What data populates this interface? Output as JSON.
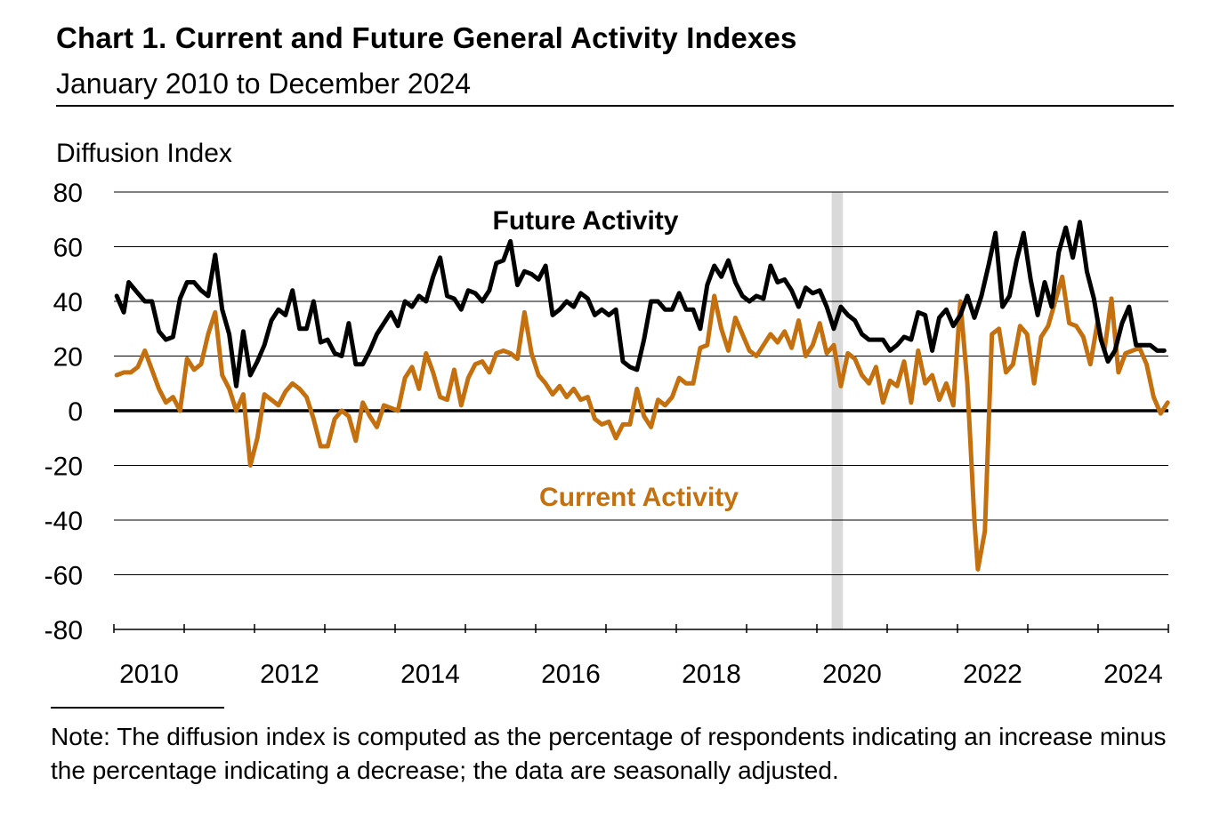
{
  "title": "Chart 1. Current and Future General Activity Indexes",
  "subtitle": "January 2010 to December 2024",
  "note": "Note: The diffusion index is computed as the percentage of respondents indicating an increase minus the percentage indicating a decrease; the data are seasonally adjusted.",
  "colors": {
    "future": "#000000",
    "current": "#c5700f",
    "recession": "#d9d9d9",
    "grid": "#000000"
  },
  "chart_data": {
    "type": "line",
    "title": "Chart 1. Current and Future General Activity Indexes",
    "ylabel": "Diffusion Index",
    "xlabel": "",
    "ylim": [
      -80,
      80
    ],
    "yticks": [
      80,
      60,
      40,
      20,
      0,
      -20,
      -40,
      -60,
      -80
    ],
    "ytick_labels": [
      "80",
      "60",
      "40",
      "20",
      "0",
      "-20",
      "-40",
      "-60",
      "-80"
    ],
    "xticks": [
      2010,
      2012,
      2014,
      2016,
      2018,
      2020,
      2022,
      2024
    ],
    "xtick_labels": [
      "2010",
      "2012",
      "2014",
      "2016",
      "2018",
      "2020",
      "2022",
      "2024"
    ],
    "xlim": [
      2009.96,
      2024.96
    ],
    "shaded_periods": [
      {
        "start": 2020.17,
        "end": 2020.33,
        "label": "recession"
      }
    ],
    "series": [
      {
        "name": "Future Activity",
        "label": "Future Activity",
        "keypoints": [
          [
            2010.0,
            42
          ],
          [
            2010.1,
            36
          ],
          [
            2010.17,
            47
          ],
          [
            2010.3,
            43
          ],
          [
            2010.4,
            40
          ],
          [
            2010.5,
            40
          ],
          [
            2010.6,
            29
          ],
          [
            2010.7,
            26
          ],
          [
            2010.8,
            27
          ],
          [
            2010.9,
            41
          ],
          [
            2011.0,
            47
          ],
          [
            2011.1,
            47
          ],
          [
            2011.2,
            44
          ],
          [
            2011.3,
            42
          ],
          [
            2011.4,
            57
          ],
          [
            2011.5,
            37
          ],
          [
            2011.6,
            28
          ],
          [
            2011.7,
            9
          ],
          [
            2011.8,
            29
          ],
          [
            2011.9,
            13
          ],
          [
            2012.0,
            18
          ],
          [
            2012.1,
            24
          ],
          [
            2012.2,
            33
          ],
          [
            2012.3,
            37
          ],
          [
            2012.4,
            35
          ],
          [
            2012.5,
            44
          ],
          [
            2012.6,
            30
          ],
          [
            2012.7,
            30
          ],
          [
            2012.8,
            40
          ],
          [
            2012.9,
            25
          ],
          [
            2013.0,
            26
          ],
          [
            2013.1,
            21
          ],
          [
            2013.2,
            20
          ],
          [
            2013.3,
            32
          ],
          [
            2013.4,
            17
          ],
          [
            2013.5,
            17
          ],
          [
            2013.6,
            22
          ],
          [
            2013.7,
            28
          ],
          [
            2013.8,
            32
          ],
          [
            2013.9,
            36
          ],
          [
            2014.0,
            31
          ],
          [
            2014.1,
            40
          ],
          [
            2014.2,
            38
          ],
          [
            2014.3,
            42
          ],
          [
            2014.4,
            40
          ],
          [
            2014.5,
            49
          ],
          [
            2014.6,
            56
          ],
          [
            2014.7,
            42
          ],
          [
            2014.8,
            41
          ],
          [
            2014.9,
            37
          ],
          [
            2015.0,
            44
          ],
          [
            2015.1,
            43
          ],
          [
            2015.2,
            40
          ],
          [
            2015.3,
            44
          ],
          [
            2015.4,
            54
          ],
          [
            2015.5,
            55
          ],
          [
            2015.6,
            62
          ],
          [
            2015.7,
            46
          ],
          [
            2015.8,
            51
          ],
          [
            2015.9,
            50
          ],
          [
            2016.0,
            48
          ],
          [
            2016.1,
            53
          ],
          [
            2016.2,
            35
          ],
          [
            2016.3,
            37
          ],
          [
            2016.4,
            40
          ],
          [
            2016.5,
            38
          ],
          [
            2016.6,
            43
          ],
          [
            2016.7,
            41
          ],
          [
            2016.8,
            35
          ],
          [
            2016.9,
            37
          ],
          [
            2017.0,
            35
          ],
          [
            2017.1,
            37
          ],
          [
            2017.2,
            18
          ],
          [
            2017.3,
            16
          ],
          [
            2017.4,
            15
          ],
          [
            2017.5,
            26
          ],
          [
            2017.6,
            40
          ],
          [
            2017.7,
            40
          ],
          [
            2017.8,
            37
          ],
          [
            2017.9,
            37
          ],
          [
            2018.0,
            43
          ],
          [
            2018.1,
            37
          ],
          [
            2018.2,
            37
          ],
          [
            2018.3,
            30
          ],
          [
            2018.4,
            46
          ],
          [
            2018.5,
            53
          ],
          [
            2018.6,
            49
          ],
          [
            2018.7,
            55
          ],
          [
            2018.8,
            47
          ],
          [
            2018.9,
            42
          ],
          [
            2019.0,
            40
          ],
          [
            2019.1,
            42
          ],
          [
            2019.2,
            41
          ],
          [
            2019.3,
            53
          ],
          [
            2019.4,
            47
          ],
          [
            2019.5,
            48
          ],
          [
            2019.6,
            44
          ],
          [
            2019.7,
            38
          ],
          [
            2019.8,
            45
          ],
          [
            2019.9,
            43
          ],
          [
            2020.0,
            44
          ],
          [
            2020.1,
            38
          ],
          [
            2020.2,
            30
          ],
          [
            2020.3,
            38
          ],
          [
            2020.4,
            35
          ],
          [
            2020.5,
            33
          ],
          [
            2020.6,
            28
          ],
          [
            2020.7,
            26
          ],
          [
            2020.8,
            26
          ],
          [
            2020.9,
            26
          ],
          [
            2021.0,
            22
          ],
          [
            2021.1,
            24
          ],
          [
            2021.2,
            27
          ],
          [
            2021.3,
            26
          ],
          [
            2021.4,
            36
          ],
          [
            2021.5,
            35
          ],
          [
            2021.6,
            22
          ],
          [
            2021.7,
            34
          ],
          [
            2021.8,
            37
          ],
          [
            2021.9,
            31
          ],
          [
            2022.0,
            35
          ],
          [
            2022.1,
            42
          ],
          [
            2022.2,
            34
          ],
          [
            2022.3,
            42
          ],
          [
            2022.4,
            53
          ],
          [
            2022.5,
            65
          ],
          [
            2022.6,
            38
          ],
          [
            2022.7,
            42
          ],
          [
            2022.8,
            55
          ],
          [
            2022.9,
            65
          ],
          [
            2023.0,
            48
          ],
          [
            2023.1,
            35
          ],
          [
            2023.2,
            47
          ],
          [
            2023.3,
            38
          ],
          [
            2023.4,
            58
          ],
          [
            2023.5,
            67
          ],
          [
            2023.6,
            56
          ],
          [
            2023.7,
            69
          ],
          [
            2023.8,
            51
          ],
          [
            2023.9,
            41
          ],
          [
            2024.0,
            26
          ],
          [
            2024.1,
            18
          ],
          [
            2024.2,
            22
          ],
          [
            2024.3,
            32
          ],
          [
            2024.4,
            38
          ],
          [
            2024.5,
            24
          ],
          [
            2024.6,
            24
          ],
          [
            2024.7,
            24
          ],
          [
            2024.8,
            22
          ],
          [
            2024.9,
            22
          ]
        ]
      },
      {
        "name": "Current Activity",
        "label": "Current Activity",
        "keypoints": [
          [
            2010.0,
            13
          ],
          [
            2010.1,
            14
          ],
          [
            2010.2,
            14
          ],
          [
            2010.3,
            16
          ],
          [
            2010.4,
            22
          ],
          [
            2010.5,
            15
          ],
          [
            2010.6,
            8
          ],
          [
            2010.7,
            3
          ],
          [
            2010.8,
            5
          ],
          [
            2010.9,
            0
          ],
          [
            2011.0,
            19
          ],
          [
            2011.1,
            15
          ],
          [
            2011.2,
            17
          ],
          [
            2011.3,
            28
          ],
          [
            2011.4,
            36
          ],
          [
            2011.5,
            13
          ],
          [
            2011.6,
            8
          ],
          [
            2011.7,
            0
          ],
          [
            2011.8,
            6
          ],
          [
            2011.9,
            -20
          ],
          [
            2012.0,
            -10
          ],
          [
            2012.1,
            6
          ],
          [
            2012.2,
            4
          ],
          [
            2012.3,
            2
          ],
          [
            2012.4,
            7
          ],
          [
            2012.5,
            10
          ],
          [
            2012.6,
            8
          ],
          [
            2012.7,
            5
          ],
          [
            2012.8,
            -3
          ],
          [
            2012.9,
            -13
          ],
          [
            2013.0,
            -13
          ],
          [
            2013.1,
            -3
          ],
          [
            2013.2,
            0
          ],
          [
            2013.3,
            -2
          ],
          [
            2013.4,
            -11
          ],
          [
            2013.5,
            3
          ],
          [
            2013.6,
            -2
          ],
          [
            2013.7,
            -6
          ],
          [
            2013.8,
            2
          ],
          [
            2013.9,
            1
          ],
          [
            2014.0,
            0
          ],
          [
            2014.1,
            12
          ],
          [
            2014.2,
            16
          ],
          [
            2014.3,
            8
          ],
          [
            2014.4,
            21
          ],
          [
            2014.5,
            14
          ],
          [
            2014.6,
            5
          ],
          [
            2014.7,
            4
          ],
          [
            2014.8,
            15
          ],
          [
            2014.9,
            2
          ],
          [
            2015.0,
            12
          ],
          [
            2015.1,
            17
          ],
          [
            2015.2,
            18
          ],
          [
            2015.3,
            14
          ],
          [
            2015.4,
            21
          ],
          [
            2015.5,
            22
          ],
          [
            2015.6,
            21
          ],
          [
            2015.7,
            19
          ],
          [
            2015.8,
            36
          ],
          [
            2015.9,
            21
          ],
          [
            2016.0,
            13
          ],
          [
            2016.1,
            10
          ],
          [
            2016.2,
            6
          ],
          [
            2016.3,
            9
          ],
          [
            2016.4,
            5
          ],
          [
            2016.5,
            8
          ],
          [
            2016.6,
            4
          ],
          [
            2016.7,
            5
          ],
          [
            2016.8,
            -3
          ],
          [
            2016.9,
            -5
          ],
          [
            2017.0,
            -4
          ],
          [
            2017.1,
            -10
          ],
          [
            2017.2,
            -5
          ],
          [
            2017.3,
            -5
          ],
          [
            2017.4,
            8
          ],
          [
            2017.5,
            -2
          ],
          [
            2017.6,
            -6
          ],
          [
            2017.7,
            4
          ],
          [
            2017.8,
            2
          ],
          [
            2017.9,
            5
          ],
          [
            2018.0,
            12
          ],
          [
            2018.1,
            10
          ],
          [
            2018.2,
            10
          ],
          [
            2018.3,
            23
          ],
          [
            2018.4,
            24
          ],
          [
            2018.5,
            42
          ],
          [
            2018.6,
            30
          ],
          [
            2018.7,
            22
          ],
          [
            2018.8,
            34
          ],
          [
            2018.9,
            28
          ],
          [
            2019.0,
            22
          ],
          [
            2019.1,
            20
          ],
          [
            2019.2,
            24
          ],
          [
            2019.3,
            28
          ],
          [
            2019.4,
            25
          ],
          [
            2019.5,
            29
          ],
          [
            2019.6,
            23
          ],
          [
            2019.7,
            33
          ],
          [
            2019.8,
            20
          ],
          [
            2019.9,
            24
          ],
          [
            2020.0,
            32
          ],
          [
            2020.1,
            21
          ],
          [
            2020.2,
            24
          ],
          [
            2020.3,
            9
          ],
          [
            2020.4,
            21
          ],
          [
            2020.5,
            19
          ],
          [
            2020.6,
            13
          ],
          [
            2020.7,
            10
          ],
          [
            2020.8,
            16
          ],
          [
            2020.9,
            3
          ],
          [
            2021.0,
            11
          ],
          [
            2021.1,
            9
          ],
          [
            2021.2,
            18
          ],
          [
            2021.3,
            3
          ],
          [
            2021.4,
            22
          ],
          [
            2021.5,
            10
          ],
          [
            2021.6,
            13
          ],
          [
            2021.7,
            4
          ],
          [
            2021.8,
            10
          ],
          [
            2021.9,
            2
          ],
          [
            2022.0,
            40
          ],
          [
            2022.1,
            10
          ],
          [
            2022.2,
            -40
          ],
          [
            2022.25,
            -58
          ],
          [
            2022.35,
            -44
          ],
          [
            2022.45,
            28
          ],
          [
            2022.55,
            30
          ],
          [
            2022.65,
            14
          ],
          [
            2022.75,
            17
          ],
          [
            2022.85,
            31
          ],
          [
            2022.95,
            28
          ],
          [
            2023.05,
            10
          ],
          [
            2023.15,
            27
          ],
          [
            2023.25,
            31
          ],
          [
            2023.35,
            40
          ],
          [
            2023.45,
            49
          ],
          [
            2023.55,
            32
          ],
          [
            2023.65,
            31
          ],
          [
            2023.75,
            27
          ],
          [
            2023.85,
            17
          ],
          [
            2023.95,
            32
          ],
          [
            2024.05,
            22
          ],
          [
            2024.15,
            41
          ],
          [
            2024.25,
            14
          ],
          [
            2024.35,
            21
          ],
          [
            2024.45,
            22
          ],
          [
            2024.55,
            23
          ],
          [
            2024.65,
            17
          ],
          [
            2024.75,
            5
          ],
          [
            2024.85,
            -1
          ],
          [
            2024.95,
            3
          ]
        ]
      }
    ]
  }
}
